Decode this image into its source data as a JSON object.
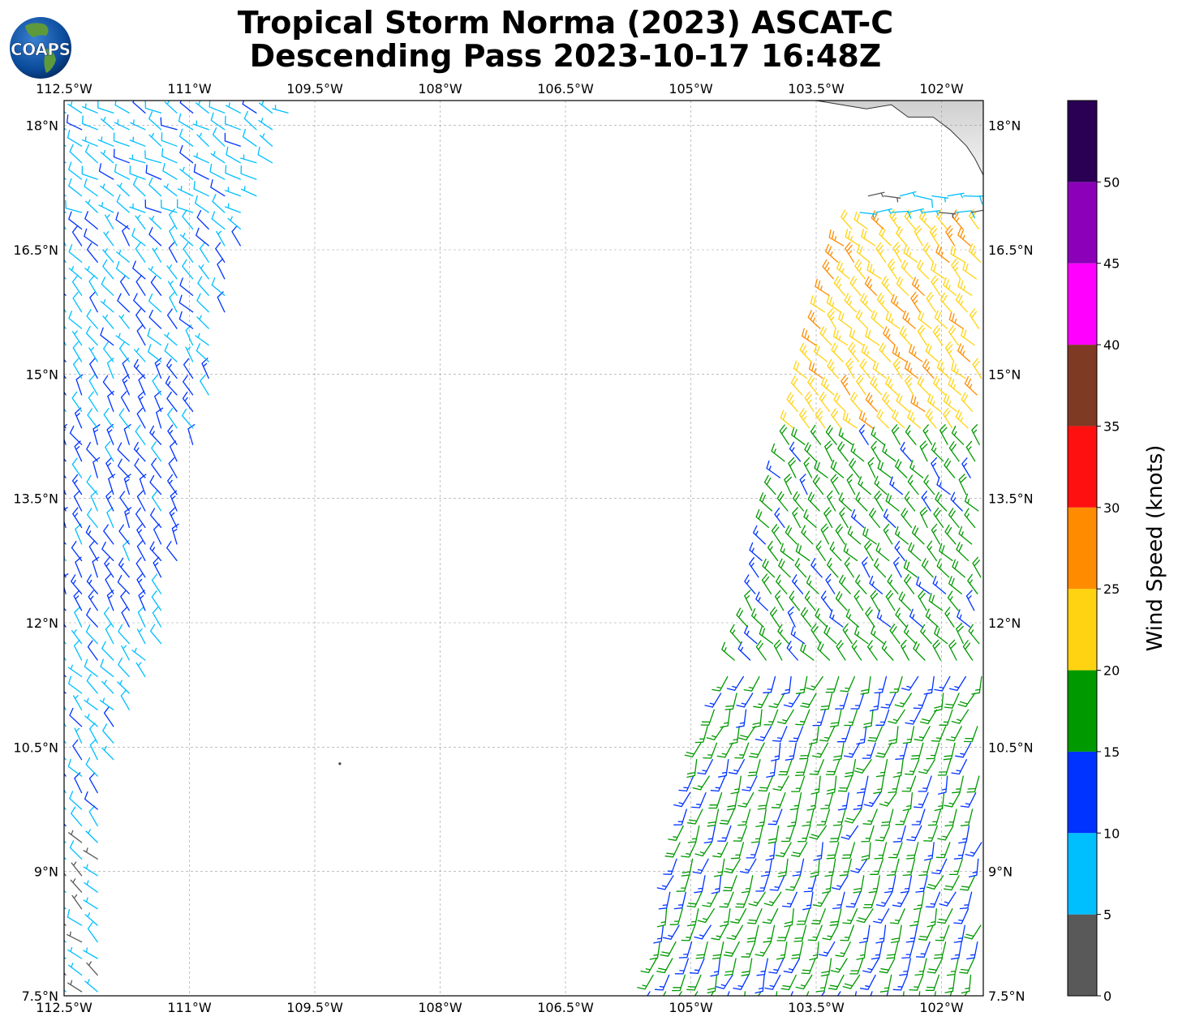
{
  "header": {
    "title_line1": "Tropical Storm Norma (2023) ASCAT-C",
    "title_line2": "Descending Pass 2023-10-17 16:48Z",
    "logo_text": "COAPS"
  },
  "chart_data": {
    "type": "wind-barb-map",
    "projection": "lat-lon",
    "xlim": [
      -112.5,
      -101.5
    ],
    "ylim": [
      7.5,
      18.3
    ],
    "grid": true,
    "x_ticks": [
      -112.5,
      -111,
      -109.5,
      -108,
      -106.5,
      -105,
      -103.5,
      -102
    ],
    "x_tick_labels": [
      "112.5°W",
      "111°W",
      "109.5°W",
      "108°W",
      "106.5°W",
      "105°W",
      "103.5°W",
      "102°W"
    ],
    "y_ticks": [
      7.5,
      9,
      10.5,
      12,
      13.5,
      15,
      16.5,
      18
    ],
    "y_tick_labels": [
      "7.5°N",
      "9°N",
      "10.5°N",
      "12°N",
      "13.5°N",
      "15°N",
      "16.5°N",
      "18°N"
    ],
    "colorbar": {
      "label": "Wind Speed (knots)",
      "bounds": [
        0,
        5,
        10,
        15,
        20,
        25,
        30,
        35,
        40,
        45,
        50,
        55
      ],
      "tick_labels": [
        "0",
        "5",
        "10",
        "15",
        "20",
        "25",
        "30",
        "35",
        "40",
        "45",
        "50"
      ],
      "colors": [
        "#595959",
        "#00bfff",
        "#0033ff",
        "#009900",
        "#ffd311",
        "#ff8c00",
        "#ff1010",
        "#7f3a24",
        "#ff00ff",
        "#8b00b8",
        "#2a0055"
      ]
    },
    "swaths": [
      {
        "name": "west",
        "lat_range": [
          7.5,
          18.3
        ],
        "east_edge_lon": [
          [
            7.8,
            -112.0
          ],
          [
            10.5,
            -111.9
          ],
          [
            12.0,
            -111.2
          ],
          [
            13.5,
            -111.1
          ],
          [
            15.0,
            -110.7
          ],
          [
            16.5,
            -110.4
          ],
          [
            18.3,
            -109.7
          ]
        ],
        "speed_zones": [
          {
            "lat_range": [
              16.8,
              18.3
            ],
            "knots": 8,
            "direction_deg": 300
          },
          {
            "lat_range": [
              15.0,
              16.8
            ],
            "knots": 9,
            "direction_deg": 320
          },
          {
            "lat_range": [
              12.0,
              15.0
            ],
            "knots": 12,
            "direction_deg": 330
          },
          {
            "lat_range": [
              9.5,
              12.0
            ],
            "knots": 9,
            "direction_deg": 320
          },
          {
            "lat_range": [
              7.5,
              9.5
            ],
            "knots": 6,
            "direction_deg": 310
          }
        ]
      },
      {
        "name": "east",
        "lat_range": [
          7.5,
          17.3
        ],
        "west_edge_lon": [
          [
            7.5,
            -105.5
          ],
          [
            10.5,
            -104.9
          ],
          [
            12.0,
            -104.3
          ],
          [
            13.5,
            -104.0
          ],
          [
            15.0,
            -103.6
          ],
          [
            16.5,
            -103.2
          ],
          [
            17.3,
            -102.8
          ]
        ],
        "speed_zones": [
          {
            "lat_range": [
              14.2,
              16.8
            ],
            "knots": 23,
            "direction_deg": 315,
            "note_peak_knots": 27
          },
          {
            "lat_range": [
              11.5,
              14.2
            ],
            "knots": 17,
            "direction_deg": 320
          },
          {
            "lat_range": [
              7.5,
              11.5
            ],
            "knots": 16,
            "direction_deg": 200
          },
          {
            "lat_range": [
              16.8,
              17.8
            ],
            "knots": 7,
            "direction_deg": 90
          }
        ]
      }
    ],
    "land": {
      "name": "Mexico coast",
      "lat_range": [
        17.4,
        18.3
      ],
      "lon_range": [
        -103.5,
        -101.5
      ]
    },
    "island": {
      "lon": -109.2,
      "lat": 10.3
    }
  }
}
